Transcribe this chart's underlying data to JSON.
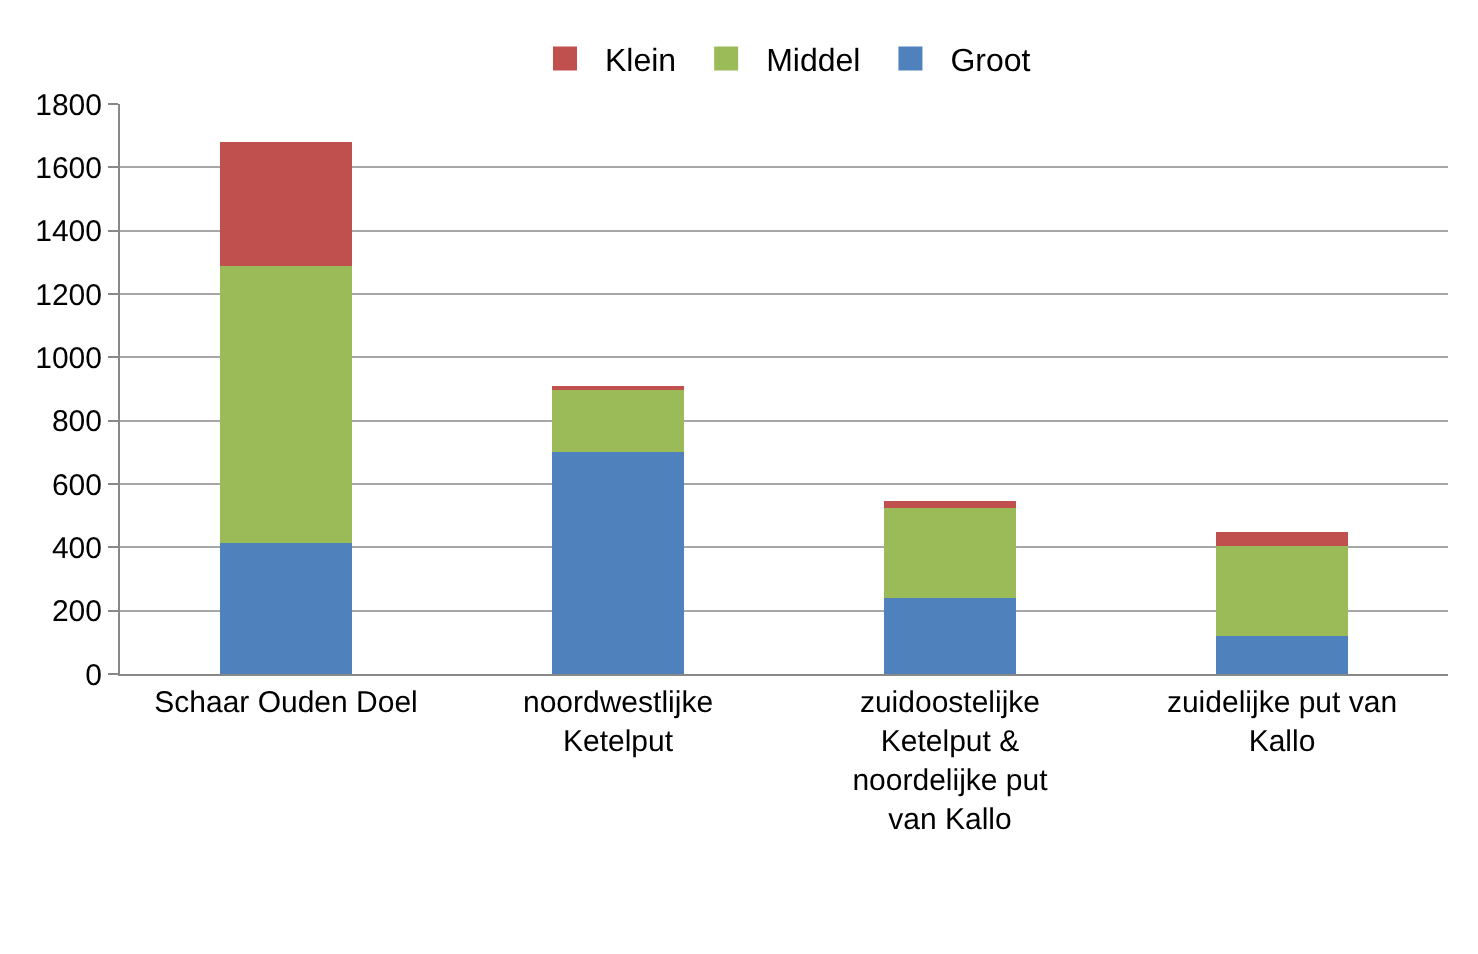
{
  "chart_data": {
    "type": "bar",
    "stacked": true,
    "categories": [
      "Schaar Ouden Doel",
      "noordwestlijke Ketelput",
      "zuidoostelijke Ketelput & noordelijke put van Kallo",
      "zuidelijke put van Kallo"
    ],
    "series": [
      {
        "name": "Groot",
        "color": "#4f81bd",
        "values": [
          415,
          700,
          240,
          120
        ]
      },
      {
        "name": "Middel",
        "color": "#9bbb59",
        "values": [
          875,
          200,
          285,
          285
        ]
      },
      {
        "name": "Klein",
        "color": "#c0504d",
        "values": [
          390,
          10,
          20,
          45
        ]
      }
    ],
    "ylim": [
      0,
      1800
    ],
    "yticks": [
      0,
      200,
      400,
      600,
      800,
      1000,
      1200,
      1400,
      1600,
      1800
    ],
    "grid": "y",
    "legend": "top"
  }
}
